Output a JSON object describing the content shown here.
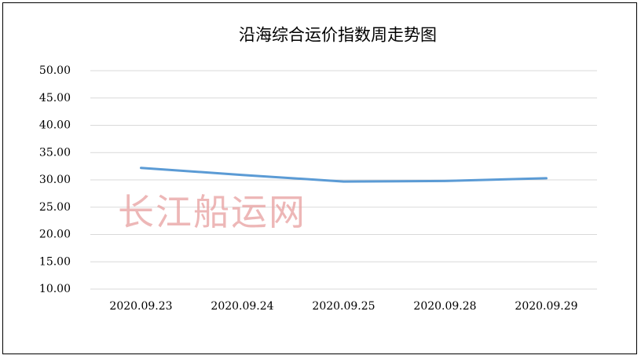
{
  "chart_data": {
    "type": "line",
    "title": "沿海综合运价指数周走势图",
    "watermark": "长江船运网",
    "categories": [
      "2020.09.23",
      "2020.09.24",
      "2020.09.25",
      "2020.09.28",
      "2020.09.29"
    ],
    "values": [
      32.2,
      30.9,
      29.7,
      29.8,
      30.3
    ],
    "color": "#5b9bd5",
    "ylim": [
      10,
      50
    ],
    "yticks": [
      {
        "value": 10,
        "label": "10.00"
      },
      {
        "value": 15,
        "label": "15.00"
      },
      {
        "value": 20,
        "label": "20.00"
      },
      {
        "value": 25,
        "label": "25.00"
      },
      {
        "value": 30,
        "label": "30.00"
      },
      {
        "value": 35,
        "label": "35.00"
      },
      {
        "value": 40,
        "label": "40.00"
      },
      {
        "value": 45,
        "label": "45.00"
      },
      {
        "value": 50,
        "label": "50.00"
      }
    ],
    "grid": true
  }
}
